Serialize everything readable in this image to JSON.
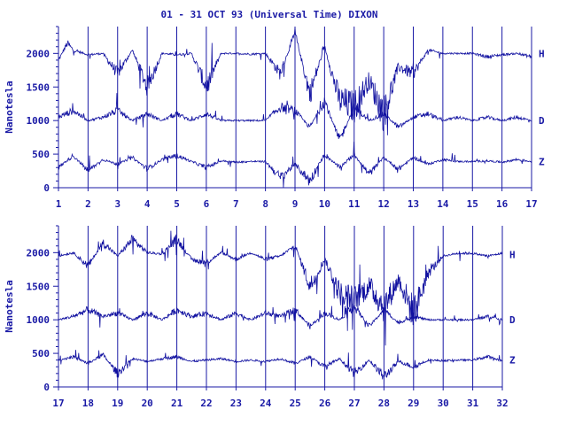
{
  "title": "01 - 31 OCT 93 (Universal Time) DIXON",
  "colors": {
    "ink": "#1a1aa6",
    "trace": "#1010a0",
    "background": "#ffffff"
  },
  "chart_data": [
    {
      "type": "line",
      "panel": "top",
      "ylabel": "Nanotesla",
      "xlim": [
        1,
        17
      ],
      "ylim": [
        0,
        2400
      ],
      "x_ticks": [
        "1",
        "2",
        "3",
        "4",
        "5",
        "6",
        "7",
        "8",
        "9",
        "10",
        "11",
        "12",
        "13",
        "14",
        "15",
        "16",
        "17"
      ],
      "y_ticks": [
        "0",
        "500",
        "1000",
        "1500",
        "2000"
      ],
      "grid": "vertical at each day",
      "series": [
        {
          "name": "H",
          "baseline": 2000,
          "x": [
            1,
            1.3,
            1.5,
            2,
            2.5,
            3,
            3.5,
            4,
            4.5,
            5,
            5.5,
            6,
            6.5,
            7,
            7.5,
            8,
            8.5,
            9,
            9.5,
            10,
            10.5,
            11,
            11.5,
            12,
            12.5,
            13,
            13.5,
            14,
            14.5,
            15,
            15.5,
            16,
            16.5,
            17
          ],
          "values": [
            1900,
            2150,
            2050,
            1980,
            2000,
            1700,
            2050,
            1500,
            2000,
            1980,
            2000,
            1500,
            2000,
            2000,
            1990,
            2000,
            1700,
            2300,
            1400,
            2100,
            1300,
            1200,
            1600,
            1100,
            1800,
            1700,
            2050,
            2000,
            2000,
            2000,
            1950,
            1980,
            2000,
            1950
          ]
        },
        {
          "name": "D",
          "baseline": 1000,
          "x": [
            1,
            1.5,
            2,
            2.5,
            3,
            3.5,
            4,
            4.5,
            5,
            5.5,
            6,
            6.5,
            7,
            7.5,
            8,
            8.5,
            9,
            9.5,
            10,
            10.5,
            11,
            11.5,
            12,
            12.5,
            13,
            13.5,
            14,
            14.5,
            15,
            15.5,
            16,
            16.5,
            17
          ],
          "values": [
            1050,
            1150,
            1000,
            1050,
            1150,
            1000,
            1100,
            1000,
            1100,
            1000,
            1100,
            1000,
            1000,
            1000,
            1000,
            1200,
            1150,
            900,
            1300,
            700,
            1200,
            1000,
            1100,
            900,
            1050,
            1100,
            1000,
            1050,
            1000,
            1050,
            1000,
            1050,
            1000
          ]
        },
        {
          "name": "Z",
          "baseline": 390,
          "x": [
            1,
            1.5,
            2,
            2.5,
            3,
            3.5,
            4,
            4.5,
            5,
            5.5,
            6,
            6.5,
            7,
            7.5,
            8,
            8.5,
            9,
            9.5,
            10,
            10.5,
            11,
            11.5,
            12,
            12.5,
            13,
            13.5,
            14,
            14.5,
            15,
            15.5,
            16,
            16.5,
            17
          ],
          "values": [
            300,
            480,
            250,
            420,
            350,
            450,
            280,
            420,
            480,
            390,
            300,
            400,
            380,
            390,
            390,
            150,
            350,
            100,
            500,
            300,
            500,
            200,
            450,
            280,
            450,
            350,
            420,
            390,
            390,
            400,
            380,
            420,
            390
          ]
        }
      ]
    },
    {
      "type": "line",
      "panel": "bottom",
      "ylabel": "Nanotesla",
      "xlim": [
        17,
        32
      ],
      "ylim": [
        0,
        2400
      ],
      "x_ticks": [
        "17",
        "18",
        "19",
        "20",
        "21",
        "22",
        "23",
        "24",
        "25",
        "26",
        "27",
        "28",
        "29",
        "30",
        "31",
        "32"
      ],
      "y_ticks": [
        "0",
        "500",
        "1000",
        "1500",
        "2000"
      ],
      "grid": "vertical at each day",
      "series": [
        {
          "name": "H",
          "baseline": 1970,
          "x": [
            17,
            17.5,
            18,
            18.5,
            19,
            19.5,
            20,
            20.5,
            21,
            21.5,
            22,
            22.5,
            23,
            23.5,
            24,
            24.5,
            25,
            25.5,
            26,
            26.5,
            27,
            27.5,
            28,
            28.5,
            29,
            29.5,
            30,
            30.5,
            31,
            31.5,
            32
          ],
          "values": [
            1950,
            2000,
            1800,
            2150,
            1950,
            2200,
            2000,
            1980,
            2200,
            1900,
            1850,
            2000,
            1900,
            2000,
            1900,
            1950,
            2100,
            1500,
            1900,
            1400,
            1300,
            1500,
            1200,
            1600,
            1100,
            1700,
            1950,
            1990,
            1990,
            1950,
            1990
          ]
        },
        {
          "name": "D",
          "baseline": 1000,
          "x": [
            17,
            17.5,
            18,
            18.5,
            19,
            19.5,
            20,
            20.5,
            21,
            21.5,
            22,
            22.5,
            23,
            23.5,
            24,
            24.5,
            25,
            25.5,
            26,
            26.5,
            27,
            27.5,
            28,
            28.5,
            29,
            29.5,
            30,
            30.5,
            31,
            31.5,
            32
          ],
          "values": [
            1000,
            1050,
            1150,
            1050,
            1100,
            1000,
            1100,
            1000,
            1150,
            1050,
            1100,
            1000,
            1100,
            1000,
            1100,
            1050,
            1150,
            900,
            1100,
            1000,
            1200,
            900,
            1150,
            950,
            1050,
            1000,
            1000,
            1000,
            1000,
            1050,
            1000
          ]
        },
        {
          "name": "Z",
          "baseline": 400,
          "x": [
            17,
            17.5,
            18,
            18.5,
            19,
            19.5,
            20,
            20.5,
            21,
            21.5,
            22,
            22.5,
            23,
            23.5,
            24,
            24.5,
            25,
            25.5,
            26,
            26.5,
            27,
            27.5,
            28,
            28.5,
            29,
            29.5,
            30,
            30.5,
            31,
            31.5,
            32
          ],
          "values": [
            400,
            450,
            350,
            480,
            200,
            420,
            380,
            420,
            450,
            380,
            400,
            420,
            380,
            400,
            380,
            420,
            350,
            450,
            300,
            420,
            200,
            400,
            150,
            380,
            300,
            400,
            390,
            400,
            400,
            450,
            390
          ]
        }
      ]
    }
  ]
}
